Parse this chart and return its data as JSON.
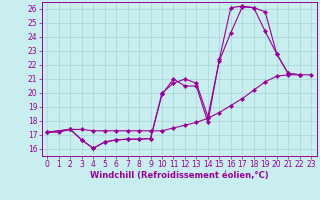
{
  "xlabel": "Windchill (Refroidissement éolien,°C)",
  "bg_color": "#c8eef0",
  "line_color": "#990099",
  "marker": "D",
  "markersize": 2.2,
  "linewidth": 0.8,
  "xlim": [
    -0.5,
    23.5
  ],
  "ylim": [
    15.5,
    26.5
  ],
  "xticks": [
    0,
    1,
    2,
    3,
    4,
    5,
    6,
    7,
    8,
    9,
    10,
    11,
    12,
    13,
    14,
    15,
    16,
    17,
    18,
    19,
    20,
    21,
    22,
    23
  ],
  "yticks": [
    16,
    17,
    18,
    19,
    20,
    21,
    22,
    23,
    24,
    25,
    26
  ],
  "line1_x": [
    0,
    1,
    2,
    3,
    4,
    5,
    6,
    7,
    8,
    9,
    10,
    11,
    12,
    13,
    14,
    15,
    16,
    17,
    18,
    19,
    20,
    21,
    22,
    23
  ],
  "line1_y": [
    17.2,
    17.2,
    17.4,
    17.4,
    17.3,
    17.3,
    17.3,
    17.3,
    17.3,
    17.3,
    17.3,
    17.5,
    17.7,
    17.9,
    18.2,
    18.6,
    19.1,
    19.6,
    20.2,
    20.8,
    21.2,
    21.3,
    21.3,
    21.3
  ],
  "line2_x": [
    0,
    2,
    3,
    4,
    5,
    6,
    7,
    8,
    9,
    10,
    11,
    12,
    13,
    14,
    15,
    16,
    17,
    18,
    19,
    20,
    21,
    22
  ],
  "line2_y": [
    17.2,
    17.4,
    16.65,
    16.05,
    16.5,
    16.65,
    16.7,
    16.7,
    16.75,
    20.0,
    20.7,
    21.0,
    20.7,
    18.3,
    22.3,
    24.3,
    26.15,
    26.1,
    24.4,
    22.8,
    21.4,
    21.3
  ],
  "line3_x": [
    0,
    2,
    3,
    4,
    5,
    6,
    7,
    8,
    9,
    10,
    11,
    12,
    13,
    14,
    15,
    16,
    17,
    18,
    19,
    20,
    21,
    22
  ],
  "line3_y": [
    17.2,
    17.4,
    16.65,
    16.05,
    16.5,
    16.65,
    16.7,
    16.7,
    16.75,
    19.9,
    21.0,
    20.5,
    20.5,
    17.9,
    22.4,
    26.1,
    26.2,
    26.1,
    25.8,
    22.8,
    21.4,
    21.3
  ],
  "tick_fontsize": 5.5,
  "xlabel_fontsize": 6.0
}
